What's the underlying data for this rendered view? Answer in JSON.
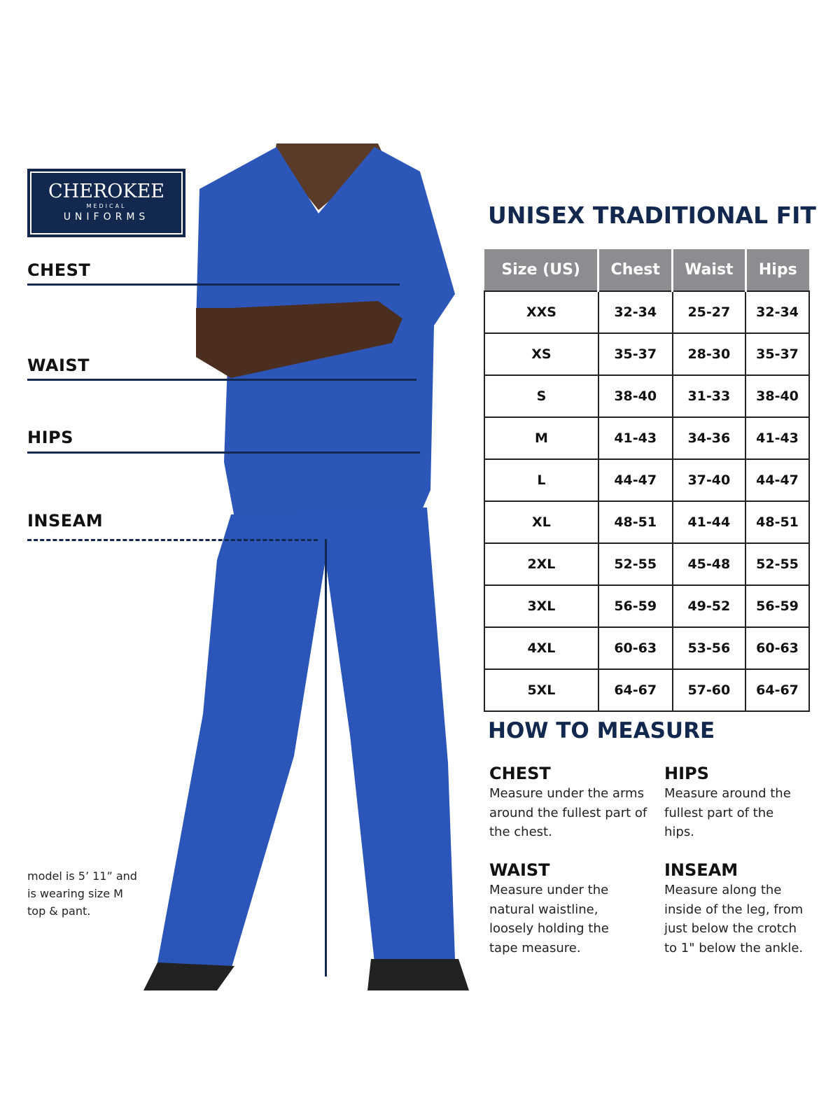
{
  "brand": {
    "name": "CHEROKEE",
    "line2": "MEDICAL",
    "line3": "UNIFORMS"
  },
  "colors": {
    "navy": "#13284f",
    "scrubs_blue": "#2c56b8",
    "header_gray": "#8c8d90"
  },
  "measure_labels": [
    "CHEST",
    "WAIST",
    "HIPS",
    "INSEAM"
  ],
  "model_note": "model is 5’ 11” and is wearing size M top & pant.",
  "size_chart": {
    "title": "UNISEX TRADITIONAL FIT",
    "headers": [
      "Size (US)",
      "Chest",
      "Waist",
      "Hips"
    ],
    "rows": [
      [
        "XXS",
        "32-34",
        "25-27",
        "32-34"
      ],
      [
        "XS",
        "35-37",
        "28-30",
        "35-37"
      ],
      [
        "S",
        "38-40",
        "31-33",
        "38-40"
      ],
      [
        "M",
        "41-43",
        "34-36",
        "41-43"
      ],
      [
        "L",
        "44-47",
        "37-40",
        "44-47"
      ],
      [
        "XL",
        "48-51",
        "41-44",
        "48-51"
      ],
      [
        "2XL",
        "52-55",
        "45-48",
        "52-55"
      ],
      [
        "3XL",
        "56-59",
        "49-52",
        "56-59"
      ],
      [
        "4XL",
        "60-63",
        "53-56",
        "60-63"
      ],
      [
        "5XL",
        "64-67",
        "57-60",
        "64-67"
      ]
    ]
  },
  "how_to_measure": {
    "title": "HOW TO MEASURE",
    "sections": [
      {
        "heading": "CHEST",
        "text": "Measure under the arms around the fullest part of the chest."
      },
      {
        "heading": "HIPS",
        "text": "Measure around the fullest part of the hips."
      },
      {
        "heading": "WAIST",
        "text": "Measure under the natural waistline, loosely holding the tape measure."
      },
      {
        "heading": "INSEAM",
        "text": "Measure along the inside of the leg, from just below the crotch to 1\" below the ankle."
      }
    ]
  }
}
